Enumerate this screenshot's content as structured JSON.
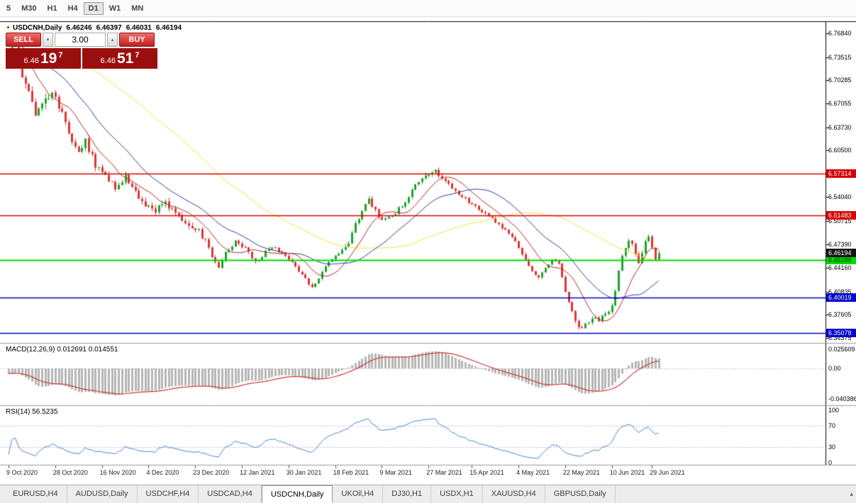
{
  "toolbar": {
    "periods": [
      {
        "label": "5",
        "active": false
      },
      {
        "label": "M30",
        "active": false
      },
      {
        "label": "H1",
        "active": false
      },
      {
        "label": "H4",
        "active": false
      },
      {
        "label": "D1",
        "active": true
      },
      {
        "label": "W1",
        "active": false
      },
      {
        "label": "MN",
        "active": false
      }
    ]
  },
  "chart_header": {
    "marker": "▲",
    "symbol": "USDCNH,Daily",
    "open": "6.46246",
    "high": "6.46397",
    "low": "6.46031",
    "close": "6.46194"
  },
  "trade_panel": {
    "sell_label": "SELL",
    "buy_label": "BUY",
    "volume_value": "3.00",
    "spin_down": "▾",
    "spin_up": "▴",
    "sell_price_prefix": "6.46",
    "sell_price_big": "19",
    "sell_price_sup": "7",
    "buy_price_prefix": "6.46",
    "buy_price_big": "51",
    "buy_price_sup": "7"
  },
  "chart_data": {
    "type": "candlestick",
    "symbol": "USDCNH",
    "timeframe": "Daily",
    "bars_total": 196,
    "price_axis_labels": [
      "6.76840",
      "6.73515",
      "6.70285",
      "6.67055",
      "6.63730",
      "6.60500",
      "6.57270",
      "6.54040",
      "6.50715",
      "6.47390",
      "6.44160",
      "6.40835",
      "6.37605",
      "6.34375"
    ],
    "current_price": {
      "label": "6.46194",
      "value": 6.46194,
      "badge_bg": "#141414",
      "text_color": "#ffffff"
    },
    "hlines": [
      {
        "value": 6.57314,
        "label": "6.57314",
        "color": "#d60000",
        "text_color": "#ffffff",
        "lw": 1.5
      },
      {
        "value": 6.51483,
        "label": "6.51483",
        "color": "#d60000",
        "text_color": "#ffffff",
        "lw": 1.5
      },
      {
        "value": 6.45199,
        "label": "6.45199",
        "color": "#00d800",
        "text_color": "#003300",
        "lw": 2
      },
      {
        "value": 6.40019,
        "label": "6.40019",
        "color": "#0000cc",
        "text_color": "#ffffff",
        "lw": 1.5
      },
      {
        "value": 6.35078,
        "label": "6.35078",
        "color": "#0000cc",
        "text_color": "#ffffff",
        "lw": 1.5
      }
    ],
    "date_axis": [
      {
        "label": "9 Oct 2020",
        "bar": 0
      },
      {
        "label": "28 Oct 2020",
        "bar": 14
      },
      {
        "label": "16 Nov 2020",
        "bar": 28
      },
      {
        "label": "4 Dec 2020",
        "bar": 42
      },
      {
        "label": "23 Dec 2020",
        "bar": 56
      },
      {
        "label": "12 Jan 2021",
        "bar": 70
      },
      {
        "label": "30 Jan 2021",
        "bar": 84
      },
      {
        "label": "18 Feb 2021",
        "bar": 98
      },
      {
        "label": "9 Mar 2021",
        "bar": 112
      },
      {
        "label": "27 Mar 2021",
        "bar": 126
      },
      {
        "label": "15 Apr 2021",
        "bar": 139
      },
      {
        "label": "4 May 2021",
        "bar": 153
      },
      {
        "label": "22 May 2021",
        "bar": 167
      },
      {
        "label": "10 Jun 2021",
        "bar": 181
      },
      {
        "label": "29 Jun 2021",
        "bar": 193
      }
    ],
    "close_anchors": [
      [
        0,
        6.74
      ],
      [
        2,
        6.753
      ],
      [
        4,
        6.708
      ],
      [
        6,
        6.695
      ],
      [
        8,
        6.65
      ],
      [
        10,
        6.672
      ],
      [
        13,
        6.688
      ],
      [
        16,
        6.658
      ],
      [
        19,
        6.615
      ],
      [
        21,
        6.6
      ],
      [
        23,
        6.618
      ],
      [
        26,
        6.585
      ],
      [
        29,
        6.572
      ],
      [
        32,
        6.554
      ],
      [
        35,
        6.568
      ],
      [
        38,
        6.546
      ],
      [
        41,
        6.53
      ],
      [
        44,
        6.522
      ],
      [
        47,
        6.534
      ],
      [
        50,
        6.514
      ],
      [
        53,
        6.506
      ],
      [
        56,
        6.498
      ],
      [
        59,
        6.48
      ],
      [
        61,
        6.458
      ],
      [
        63,
        6.444
      ],
      [
        65,
        6.463
      ],
      [
        68,
        6.478
      ],
      [
        71,
        6.47
      ],
      [
        74,
        6.45
      ],
      [
        77,
        6.463
      ],
      [
        80,
        6.47
      ],
      [
        83,
        6.456
      ],
      [
        86,
        6.444
      ],
      [
        89,
        6.425
      ],
      [
        91,
        6.414
      ],
      [
        93,
        6.428
      ],
      [
        96,
        6.448
      ],
      [
        99,
        6.462
      ],
      [
        102,
        6.478
      ],
      [
        105,
        6.512
      ],
      [
        108,
        6.535
      ],
      [
        110,
        6.52
      ],
      [
        112,
        6.507
      ],
      [
        115,
        6.515
      ],
      [
        118,
        6.528
      ],
      [
        121,
        6.548
      ],
      [
        124,
        6.568
      ],
      [
        126,
        6.572
      ],
      [
        128,
        6.578
      ],
      [
        130,
        6.566
      ],
      [
        133,
        6.552
      ],
      [
        136,
        6.542
      ],
      [
        139,
        6.53
      ],
      [
        142,
        6.52
      ],
      [
        145,
        6.51
      ],
      [
        148,
        6.497
      ],
      [
        151,
        6.485
      ],
      [
        153,
        6.47
      ],
      [
        155,
        6.452
      ],
      [
        157,
        6.436
      ],
      [
        159,
        6.428
      ],
      [
        161,
        6.442
      ],
      [
        163,
        6.452
      ],
      [
        165,
        6.448
      ],
      [
        166,
        6.43
      ],
      [
        167,
        6.41
      ],
      [
        168,
        6.392
      ],
      [
        169,
        6.378
      ],
      [
        170,
        6.366
      ],
      [
        171,
        6.356
      ],
      [
        173,
        6.362
      ],
      [
        175,
        6.37
      ],
      [
        177,
        6.368
      ],
      [
        179,
        6.376
      ],
      [
        181,
        6.39
      ],
      [
        182,
        6.412
      ],
      [
        183,
        6.438
      ],
      [
        184,
        6.46
      ],
      [
        185,
        6.472
      ],
      [
        186,
        6.48
      ],
      [
        187,
        6.472
      ],
      [
        188,
        6.458
      ],
      [
        189,
        6.45
      ],
      [
        190,
        6.464
      ],
      [
        191,
        6.478
      ],
      [
        192,
        6.484
      ],
      [
        193,
        6.468
      ],
      [
        194,
        6.456
      ],
      [
        195,
        6.46194
      ]
    ],
    "indicators": {
      "macd": {
        "label": "MACD(12,26,9) 0.012691 0.014551",
        "fast": 12,
        "slow": 26,
        "signal": 9,
        "axis_labels": [
          "0.025609",
          "0.00",
          "-0.040386"
        ]
      },
      "rsi": {
        "label": "RSI(14) 56.5235",
        "period": 14,
        "axis_labels": [
          "100",
          "70",
          "30",
          "0"
        ]
      },
      "ma_periods": {
        "fast": 10,
        "mid": 24,
        "slow": 60
      }
    },
    "colors": {
      "candle_up": "#1ea32b",
      "candle_down": "#e03434",
      "ma_fast": "#b02525",
      "ma_mid": "#2b3a96",
      "ma_slow": "#f2df3a",
      "macd_hist": "#b5b5b5",
      "macd_signal": "#cf3636",
      "rsi_line": "#4a86c2"
    }
  },
  "tabs": [
    {
      "label": "EURUSD,H4",
      "active": false
    },
    {
      "label": "AUDUSD,Daily",
      "active": false
    },
    {
      "label": "USDCHF,H4",
      "active": false
    },
    {
      "label": "USDCAD,H4",
      "active": false
    },
    {
      "label": "USDCNH,Daily",
      "active": true
    },
    {
      "label": "UKOil,H4",
      "active": false
    },
    {
      "label": "DJ30,H1",
      "active": false
    },
    {
      "label": "USDX,H1",
      "active": false
    },
    {
      "label": "XAUUSD,H4",
      "active": false
    },
    {
      "label": "GBPUSD,Daily",
      "active": false
    }
  ],
  "misc": {
    "scroll_arrow": "▴"
  }
}
